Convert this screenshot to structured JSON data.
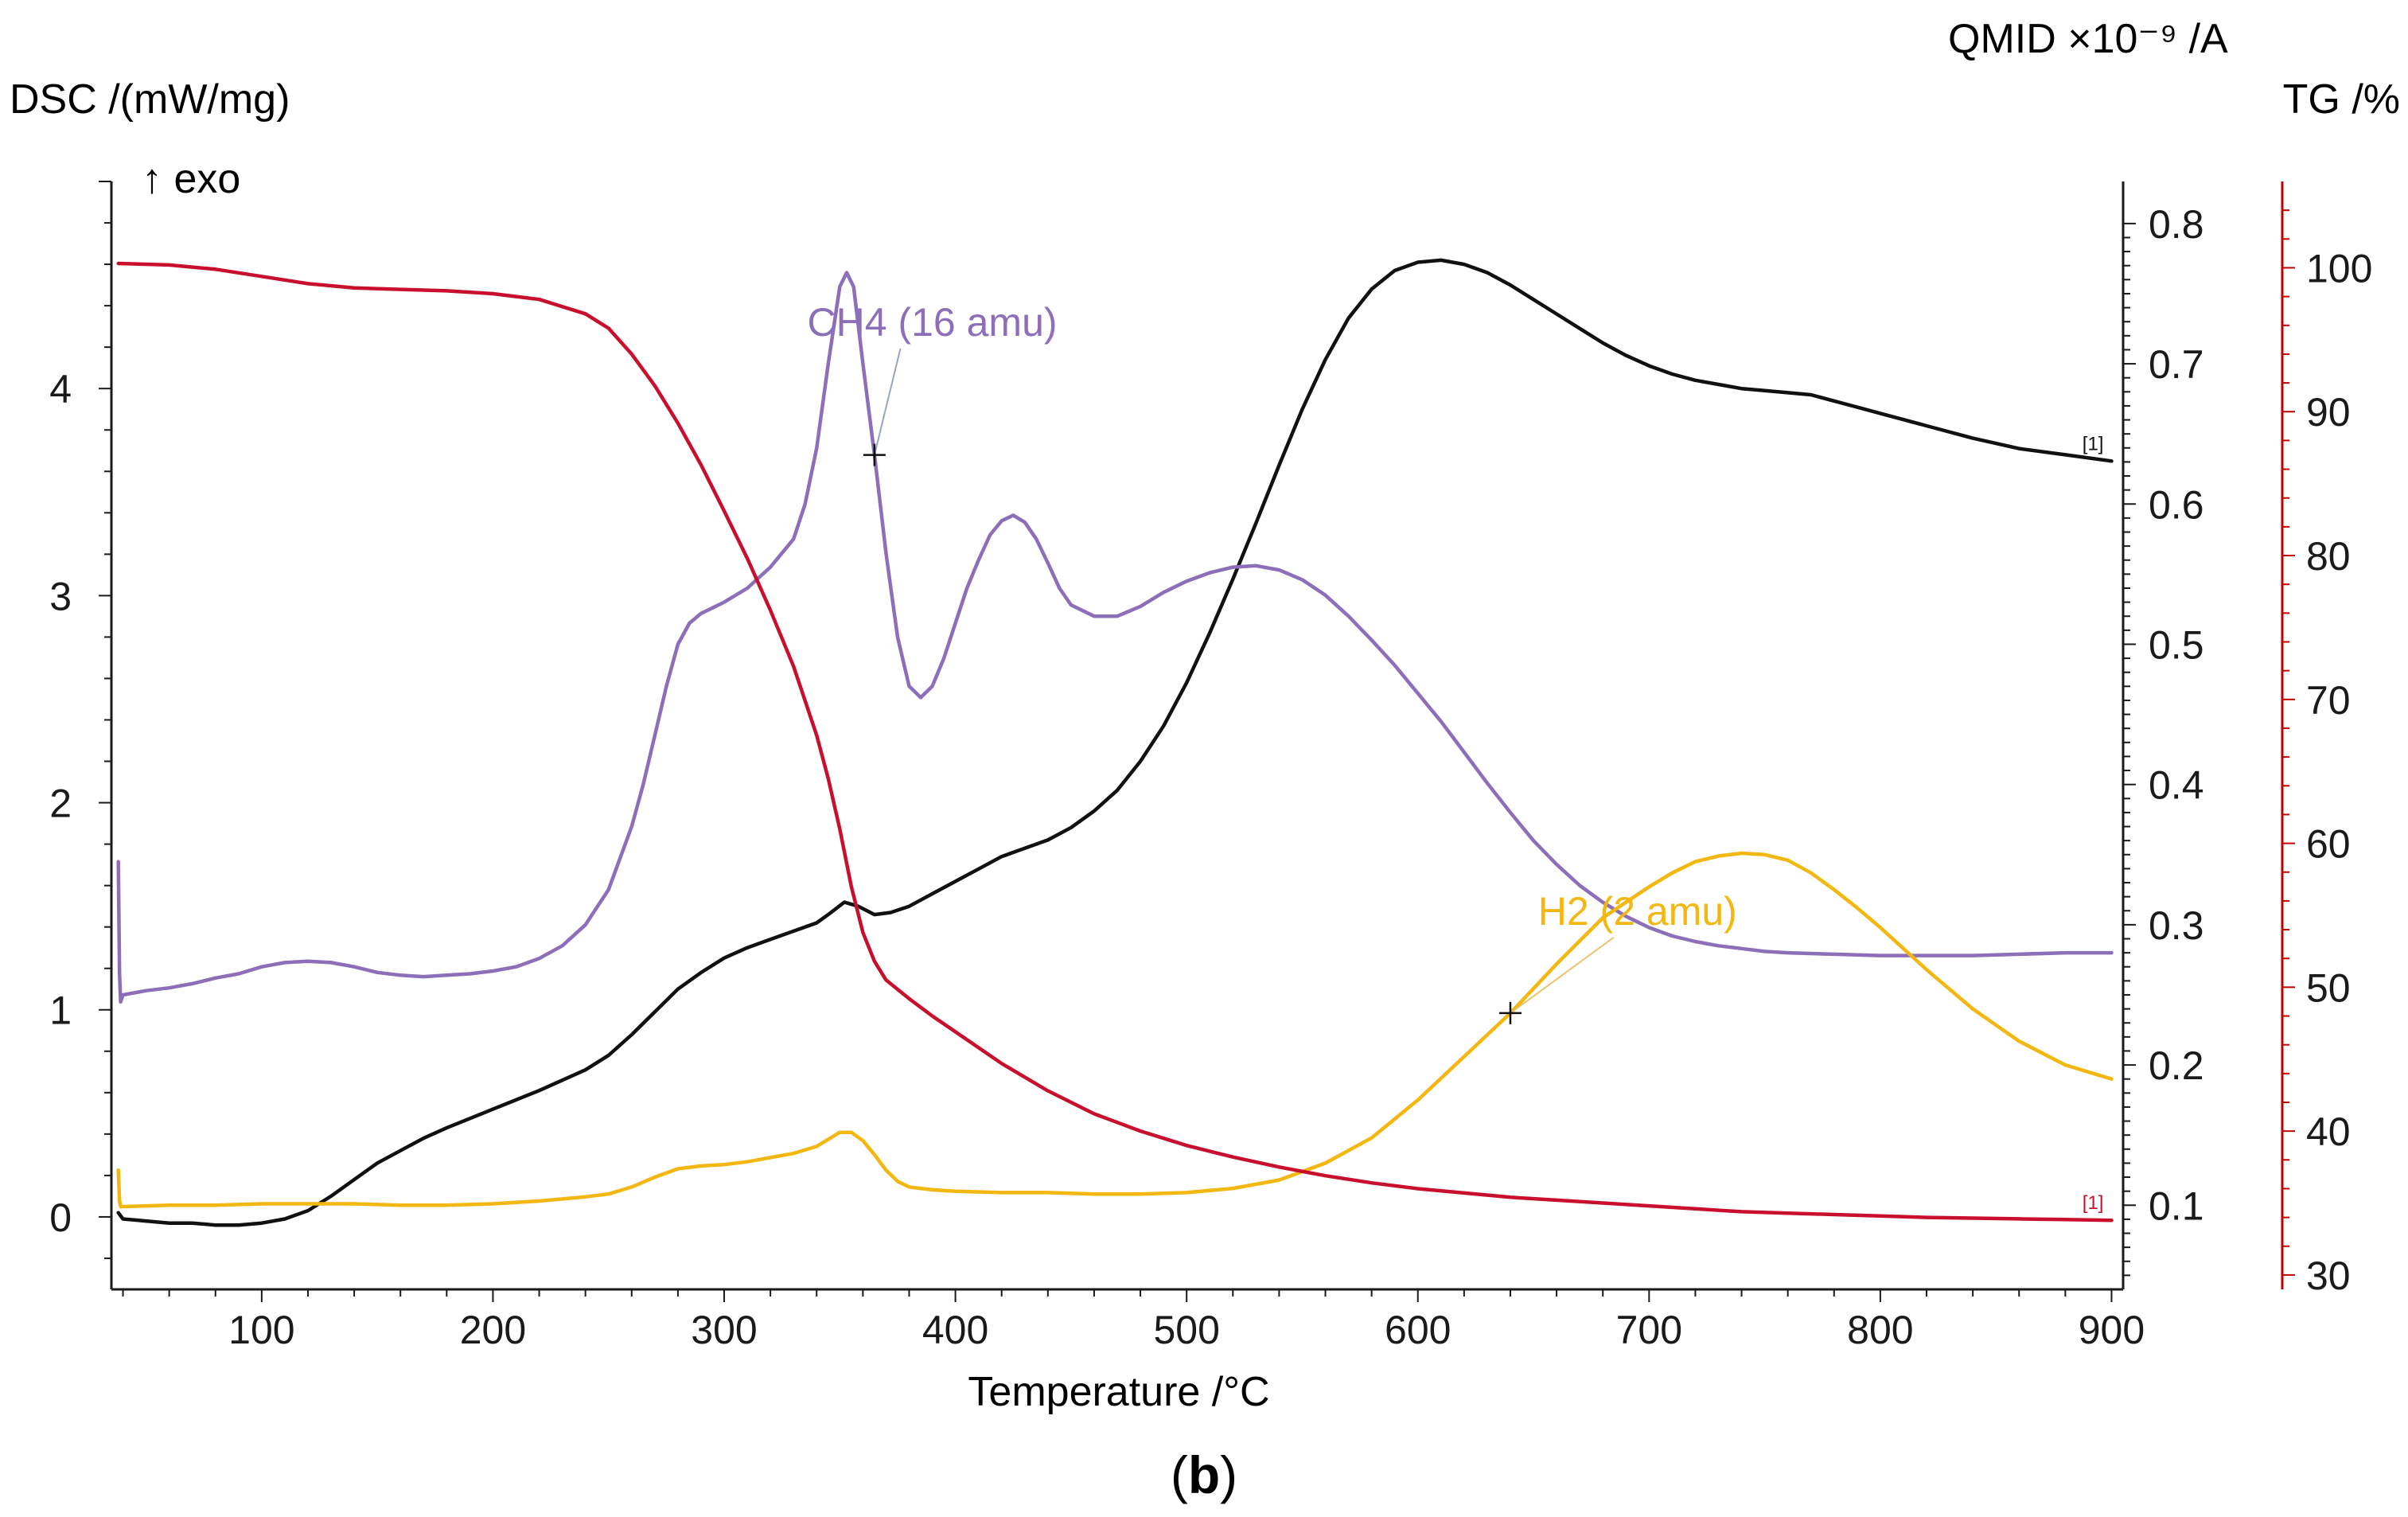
{
  "chart_data": {
    "type": "line",
    "caption": "b",
    "xlabel": "Temperature /°C",
    "xlim": [
      35,
      905
    ],
    "xticks": [
      100,
      200,
      300,
      400,
      500,
      600,
      700,
      800,
      900
    ],
    "axes": {
      "dsc": {
        "label": "DSC /(mW/mg)",
        "direction_label": "↑ exo",
        "ylim": [
          -0.35,
          5.0
        ],
        "ticks": [
          0,
          1,
          2,
          3,
          4
        ],
        "color": "#1a1a1a"
      },
      "qmid": {
        "label": "QMID ×10⁻⁹ /A",
        "ylim": [
          0.04,
          0.83
        ],
        "ticks": [
          0.1,
          0.2,
          0.3,
          0.4,
          0.5,
          0.6,
          0.7,
          0.8
        ],
        "color": "#1a1a1a"
      },
      "tg": {
        "label": "TG /%",
        "ylim": [
          29,
          106
        ],
        "ticks": [
          30,
          40,
          50,
          60,
          70,
          80,
          90,
          100
        ],
        "color": "#c00000"
      }
    },
    "series": [
      {
        "name": "DSC",
        "axis": "dsc",
        "color": "#111111",
        "end_marker": "[1]",
        "x": [
          38,
          40,
          50,
          60,
          70,
          80,
          90,
          100,
          110,
          120,
          130,
          140,
          150,
          160,
          170,
          180,
          200,
          220,
          240,
          250,
          260,
          270,
          280,
          290,
          300,
          310,
          320,
          330,
          340,
          345,
          352,
          358,
          365,
          372,
          380,
          390,
          400,
          410,
          420,
          430,
          440,
          450,
          460,
          470,
          480,
          490,
          500,
          510,
          520,
          530,
          540,
          550,
          560,
          570,
          580,
          590,
          600,
          610,
          620,
          630,
          640,
          650,
          660,
          670,
          680,
          690,
          700,
          710,
          720,
          730,
          740,
          750,
          760,
          770,
          780,
          790,
          800,
          810,
          820,
          840,
          860,
          880,
          900
        ],
        "values": [
          0.02,
          -0.01,
          -0.02,
          -0.03,
          -0.03,
          -0.04,
          -0.04,
          -0.03,
          -0.01,
          0.03,
          0.1,
          0.18,
          0.26,
          0.32,
          0.38,
          0.43,
          0.52,
          0.61,
          0.71,
          0.78,
          0.88,
          0.99,
          1.1,
          1.18,
          1.25,
          1.3,
          1.34,
          1.38,
          1.42,
          1.46,
          1.52,
          1.5,
          1.46,
          1.47,
          1.5,
          1.56,
          1.62,
          1.68,
          1.74,
          1.78,
          1.82,
          1.88,
          1.96,
          2.06,
          2.2,
          2.37,
          2.58,
          2.82,
          3.08,
          3.35,
          3.63,
          3.9,
          4.14,
          4.34,
          4.48,
          4.57,
          4.61,
          4.62,
          4.6,
          4.56,
          4.5,
          4.43,
          4.36,
          4.29,
          4.22,
          4.16,
          4.11,
          4.07,
          4.04,
          4.02,
          4.0,
          3.99,
          3.98,
          3.97,
          3.94,
          3.91,
          3.88,
          3.85,
          3.82,
          3.76,
          3.71,
          3.68,
          3.65
        ]
      },
      {
        "name": "CH4 (16 amu)",
        "axis": "qmid",
        "color": "#8c6fb8",
        "label_pos": [
          390,
          0.72
        ],
        "x": [
          38,
          38.5,
          39,
          40,
          50,
          60,
          70,
          80,
          90,
          100,
          110,
          120,
          130,
          140,
          150,
          160,
          170,
          180,
          190,
          200,
          210,
          220,
          230,
          240,
          250,
          260,
          265,
          270,
          275,
          280,
          285,
          290,
          295,
          300,
          310,
          320,
          330,
          335,
          340,
          345,
          350,
          353,
          356,
          360,
          365,
          370,
          375,
          380,
          385,
          390,
          395,
          400,
          405,
          410,
          415,
          420,
          425,
          430,
          435,
          440,
          445,
          450,
          460,
          470,
          480,
          490,
          500,
          510,
          520,
          530,
          540,
          550,
          560,
          570,
          580,
          590,
          600,
          610,
          620,
          630,
          640,
          650,
          660,
          670,
          680,
          690,
          700,
          710,
          720,
          730,
          740,
          750,
          760,
          780,
          800,
          820,
          840,
          860,
          880,
          900
        ],
        "values": [
          0.345,
          0.265,
          0.245,
          0.25,
          0.253,
          0.255,
          0.258,
          0.262,
          0.265,
          0.27,
          0.273,
          0.274,
          0.273,
          0.27,
          0.266,
          0.264,
          0.263,
          0.264,
          0.265,
          0.267,
          0.27,
          0.276,
          0.285,
          0.3,
          0.325,
          0.37,
          0.4,
          0.435,
          0.47,
          0.5,
          0.515,
          0.522,
          0.526,
          0.53,
          0.54,
          0.555,
          0.575,
          0.6,
          0.64,
          0.7,
          0.755,
          0.765,
          0.755,
          0.7,
          0.635,
          0.565,
          0.505,
          0.47,
          0.462,
          0.47,
          0.49,
          0.515,
          0.54,
          0.56,
          0.578,
          0.588,
          0.592,
          0.587,
          0.575,
          0.558,
          0.54,
          0.528,
          0.52,
          0.52,
          0.527,
          0.537,
          0.545,
          0.551,
          0.555,
          0.556,
          0.553,
          0.546,
          0.535,
          0.52,
          0.503,
          0.485,
          0.465,
          0.445,
          0.423,
          0.401,
          0.38,
          0.36,
          0.343,
          0.328,
          0.316,
          0.306,
          0.298,
          0.292,
          0.288,
          0.285,
          0.283,
          0.281,
          0.28,
          0.279,
          0.278,
          0.278,
          0.278,
          0.279,
          0.28,
          0.28
        ]
      },
      {
        "name": "H2 (2 amu)",
        "axis": "qmid",
        "color": "#f3b712",
        "label_pos": [
          695,
          0.3
        ],
        "x": [
          38,
          38.5,
          39,
          40,
          60,
          80,
          100,
          120,
          140,
          160,
          180,
          200,
          220,
          240,
          250,
          260,
          270,
          280,
          290,
          300,
          310,
          320,
          330,
          340,
          345,
          350,
          355,
          360,
          365,
          370,
          375,
          380,
          390,
          400,
          420,
          440,
          460,
          480,
          500,
          520,
          540,
          560,
          580,
          600,
          620,
          640,
          660,
          680,
          700,
          710,
          720,
          730,
          740,
          750,
          760,
          770,
          780,
          790,
          800,
          820,
          840,
          860,
          880,
          900
        ],
        "values": [
          0.125,
          0.103,
          0.099,
          0.099,
          0.1,
          0.1,
          0.101,
          0.101,
          0.101,
          0.1,
          0.1,
          0.101,
          0.103,
          0.106,
          0.108,
          0.113,
          0.12,
          0.126,
          0.128,
          0.129,
          0.131,
          0.134,
          0.137,
          0.142,
          0.147,
          0.152,
          0.152,
          0.146,
          0.136,
          0.125,
          0.117,
          0.113,
          0.111,
          0.11,
          0.109,
          0.109,
          0.108,
          0.108,
          0.109,
          0.112,
          0.118,
          0.13,
          0.148,
          0.175,
          0.206,
          0.237,
          0.272,
          0.305,
          0.327,
          0.337,
          0.345,
          0.349,
          0.351,
          0.35,
          0.346,
          0.337,
          0.325,
          0.312,
          0.298,
          0.268,
          0.24,
          0.217,
          0.2,
          0.19
        ]
      },
      {
        "name": "TG",
        "axis": "tg",
        "color": "#c8102e",
        "end_marker": "[1]",
        "x": [
          38,
          60,
          80,
          100,
          120,
          140,
          160,
          180,
          200,
          220,
          240,
          250,
          260,
          270,
          280,
          290,
          300,
          310,
          320,
          330,
          340,
          345,
          350,
          355,
          360,
          365,
          370,
          380,
          390,
          400,
          420,
          440,
          460,
          480,
          500,
          520,
          540,
          560,
          580,
          600,
          620,
          640,
          660,
          680,
          700,
          720,
          740,
          760,
          780,
          800,
          820,
          840,
          860,
          880,
          900
        ],
        "values": [
          100.3,
          100.2,
          99.9,
          99.4,
          98.9,
          98.6,
          98.5,
          98.4,
          98.2,
          97.8,
          96.8,
          95.8,
          94.0,
          91.8,
          89.2,
          86.3,
          83.1,
          79.8,
          76.2,
          72.3,
          67.5,
          64.5,
          61.0,
          57.0,
          53.8,
          51.8,
          50.5,
          49.2,
          48.0,
          46.9,
          44.7,
          42.8,
          41.2,
          40.0,
          39.0,
          38.2,
          37.5,
          36.9,
          36.4,
          36.0,
          35.7,
          35.4,
          35.2,
          35.0,
          34.8,
          34.6,
          34.4,
          34.3,
          34.2,
          34.1,
          34.0,
          33.95,
          33.9,
          33.85,
          33.8
        ]
      }
    ]
  }
}
